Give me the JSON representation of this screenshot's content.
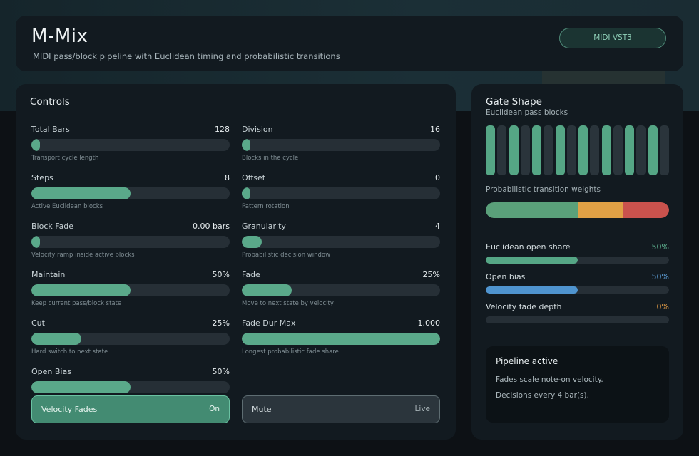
{
  "header": {
    "title": "M-Mix",
    "subtitle": "MIDI pass/block pipeline with Euclidean timing and probabilistic transitions",
    "badge": "MIDI VST3"
  },
  "controls": {
    "title": "Controls",
    "items": [
      {
        "label": "Total Bars",
        "value": "128",
        "hint": "Transport cycle length",
        "fill": 0.0
      },
      {
        "label": "Division",
        "value": "16",
        "hint": "Blocks in the cycle",
        "fill": 0.0
      },
      {
        "label": "Steps",
        "value": "8",
        "hint": "Active Euclidean blocks",
        "fill": 0.5
      },
      {
        "label": "Offset",
        "value": "0",
        "hint": "Pattern rotation",
        "fill": 0.0
      },
      {
        "label": "Block Fade",
        "value": "0.00 bars",
        "hint": "Velocity ramp inside active blocks",
        "fill": 0.0
      },
      {
        "label": "Granularity",
        "value": "4",
        "hint": "Probabilistic decision window",
        "fill": 0.1
      },
      {
        "label": "Maintain",
        "value": "50%",
        "hint": "Keep current pass/block state",
        "fill": 0.5
      },
      {
        "label": "Fade",
        "value": "25%",
        "hint": "Move to next state by velocity",
        "fill": 0.25
      },
      {
        "label": "Cut",
        "value": "25%",
        "hint": "Hard switch to next state",
        "fill": 0.25
      },
      {
        "label": "Fade Dur Max",
        "value": "1.000",
        "hint": "Longest probabilistic fade share",
        "fill": 1.0
      },
      {
        "label": "Open Bias",
        "value": "50%",
        "hint": "",
        "fill": 0.5
      }
    ],
    "toggles": [
      {
        "label": "Velocity Fades",
        "state": "On"
      },
      {
        "label": "Mute",
        "state": "Live"
      }
    ]
  },
  "gate": {
    "title": "Gate Shape",
    "subtitle": "Euclidean pass blocks",
    "steps": [
      1,
      0,
      1,
      0,
      1,
      0,
      1,
      0,
      1,
      0,
      1,
      0,
      1,
      0,
      1,
      0
    ],
    "weights_label": "Probabilistic transition weights",
    "weights": [
      {
        "share": 0.5,
        "color": "#5aa07a"
      },
      {
        "share": 0.25,
        "color": "#e0a045"
      },
      {
        "share": 0.25,
        "color": "#c9524d"
      }
    ],
    "metrics": [
      {
        "label": "Euclidean open share",
        "value": "50%",
        "fill": 0.5,
        "color": "#55a685",
        "text_color": "#5fb592"
      },
      {
        "label": "Open bias",
        "value": "50%",
        "fill": 0.5,
        "color": "#4f94cf",
        "text_color": "#5d9fd8"
      },
      {
        "label": "Velocity fade depth",
        "value": "0%",
        "fill": 0.0,
        "color": "#d68b3a",
        "text_color": "#e09a45"
      }
    ],
    "status": {
      "title": "Pipeline active",
      "lines": [
        "Fades scale note-on velocity.",
        "Decisions every 4 bar(s)."
      ]
    }
  },
  "colors": {
    "accent": "#5aa98a",
    "panel": "#121a20",
    "track": "#262f36"
  }
}
